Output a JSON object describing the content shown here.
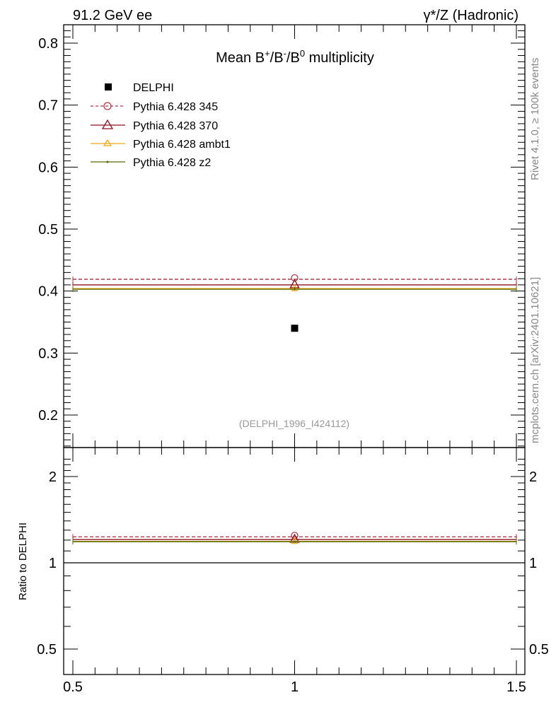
{
  "header": {
    "left": "91.2 GeV ee",
    "right": "γ*/Z (Hadronic)"
  },
  "side_labels": {
    "rivet_prefix": "Rivet 4.1.0, ",
    "rivet_ge": "≥",
    "rivet_suffix": " 100k events",
    "mcplots": "mcplots.cern.ch [arXiv:2401.10621]"
  },
  "chart_data": [
    {
      "type": "scatter",
      "title_parts": {
        "main": "Mean B",
        "sup1": "+",
        "sep1": "/B",
        "sup2": "-",
        "sep2": "/B",
        "sup3": "0",
        "rest": " multiplicity"
      },
      "analysis_label": "(DELPHI_1996_I424112)",
      "xlim": [
        0.5,
        1.5
      ],
      "ylim": [
        0.15,
        0.83
      ],
      "y_ticks": [
        {
          "v": 0.2,
          "label": "0.2"
        },
        {
          "v": 0.3,
          "label": "0.3"
        },
        {
          "v": 0.4,
          "label": "0.4"
        },
        {
          "v": 0.5,
          "label": "0.5"
        },
        {
          "v": 0.6,
          "label": "0.6"
        },
        {
          "v": 0.7,
          "label": "0.7"
        },
        {
          "v": 0.8,
          "label": "0.8"
        }
      ],
      "data": {
        "name": "DELPHI",
        "x": 1.0,
        "y": 0.34,
        "color": "#000000"
      },
      "series": [
        {
          "name": "Pythia 6.428 345",
          "y": 0.419,
          "color": "#b03a4a",
          "dash": true,
          "marker": "circle"
        },
        {
          "name": "Pythia 6.428 370",
          "y": 0.41,
          "color": "#8b1020",
          "dash": false,
          "marker": "triangle"
        },
        {
          "name": "Pythia 6.428 ambt1",
          "y": 0.404,
          "color": "#f0a818",
          "dash": false,
          "marker": "triangle-small"
        },
        {
          "name": "Pythia 6.428 z2",
          "y": 0.403,
          "color": "#5a6a00",
          "dash": false,
          "marker": "dot"
        }
      ]
    },
    {
      "type": "line",
      "ylabel": "Ratio to DELPHI",
      "xlim": [
        0.5,
        1.5
      ],
      "ylim": [
        0.35,
        2.35
      ],
      "y_ticks": [
        {
          "v": 0.5,
          "label": "0.5"
        },
        {
          "v": 1,
          "label": "1"
        },
        {
          "v": 2,
          "label": "2"
        }
      ],
      "x_ticks": [
        {
          "v": 0.5,
          "label": "0.5"
        },
        {
          "v": 1,
          "label": "1"
        },
        {
          "v": 1.5,
          "label": "1.5"
        }
      ],
      "reference": 1.0,
      "series": [
        {
          "name": "Pythia 6.428 345",
          "y": 1.232,
          "color": "#b03a4a",
          "dash": true
        },
        {
          "name": "Pythia 6.428 370",
          "y": 1.206,
          "color": "#8b1020",
          "dash": false
        },
        {
          "name": "Pythia 6.428 ambt1",
          "y": 1.188,
          "color": "#f0a818",
          "dash": false
        },
        {
          "name": "Pythia 6.428 z2",
          "y": 1.185,
          "color": "#5a6a00",
          "dash": false
        }
      ]
    }
  ]
}
